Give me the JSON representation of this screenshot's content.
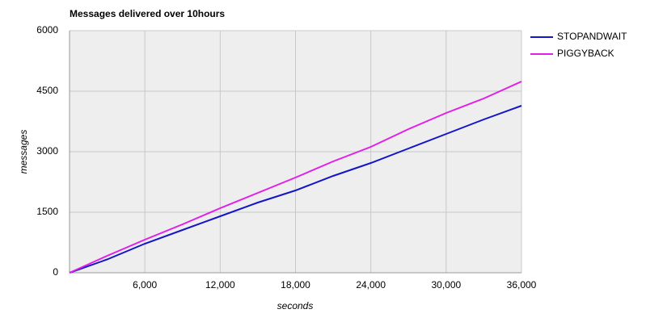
{
  "chart_data": {
    "type": "line",
    "title": "Messages delivered over 10hours",
    "x_label": "seconds",
    "y_label": "messages",
    "x": [
      0,
      3000,
      6000,
      9000,
      12000,
      15000,
      18000,
      21000,
      24000,
      27000,
      30000,
      33000,
      36000
    ],
    "series": [
      {
        "name": "STOPANDWAIT",
        "color": "#1515c8",
        "values": [
          0,
          330,
          720,
          1060,
          1400,
          1740,
          2040,
          2400,
          2720,
          3080,
          3440,
          3800,
          4140
        ]
      },
      {
        "name": "PIGGYBACK",
        "color": "#e020e8",
        "values": [
          0,
          420,
          820,
          1200,
          1600,
          1980,
          2360,
          2760,
          3120,
          3560,
          3960,
          4320,
          4740
        ]
      }
    ],
    "xlim": [
      0,
      36000
    ],
    "ylim": [
      0,
      6000
    ],
    "xticks": [
      {
        "value": 6000,
        "label": "6,000"
      },
      {
        "value": 12000,
        "label": "12,000"
      },
      {
        "value": 18000,
        "label": "18,000"
      },
      {
        "value": 24000,
        "label": "24,000"
      },
      {
        "value": 30000,
        "label": "30,000"
      },
      {
        "value": 36000,
        "label": "36,000"
      }
    ],
    "yticks": [
      0,
      1500,
      3000,
      4500,
      6000
    ],
    "grid": true,
    "legend": "right"
  }
}
